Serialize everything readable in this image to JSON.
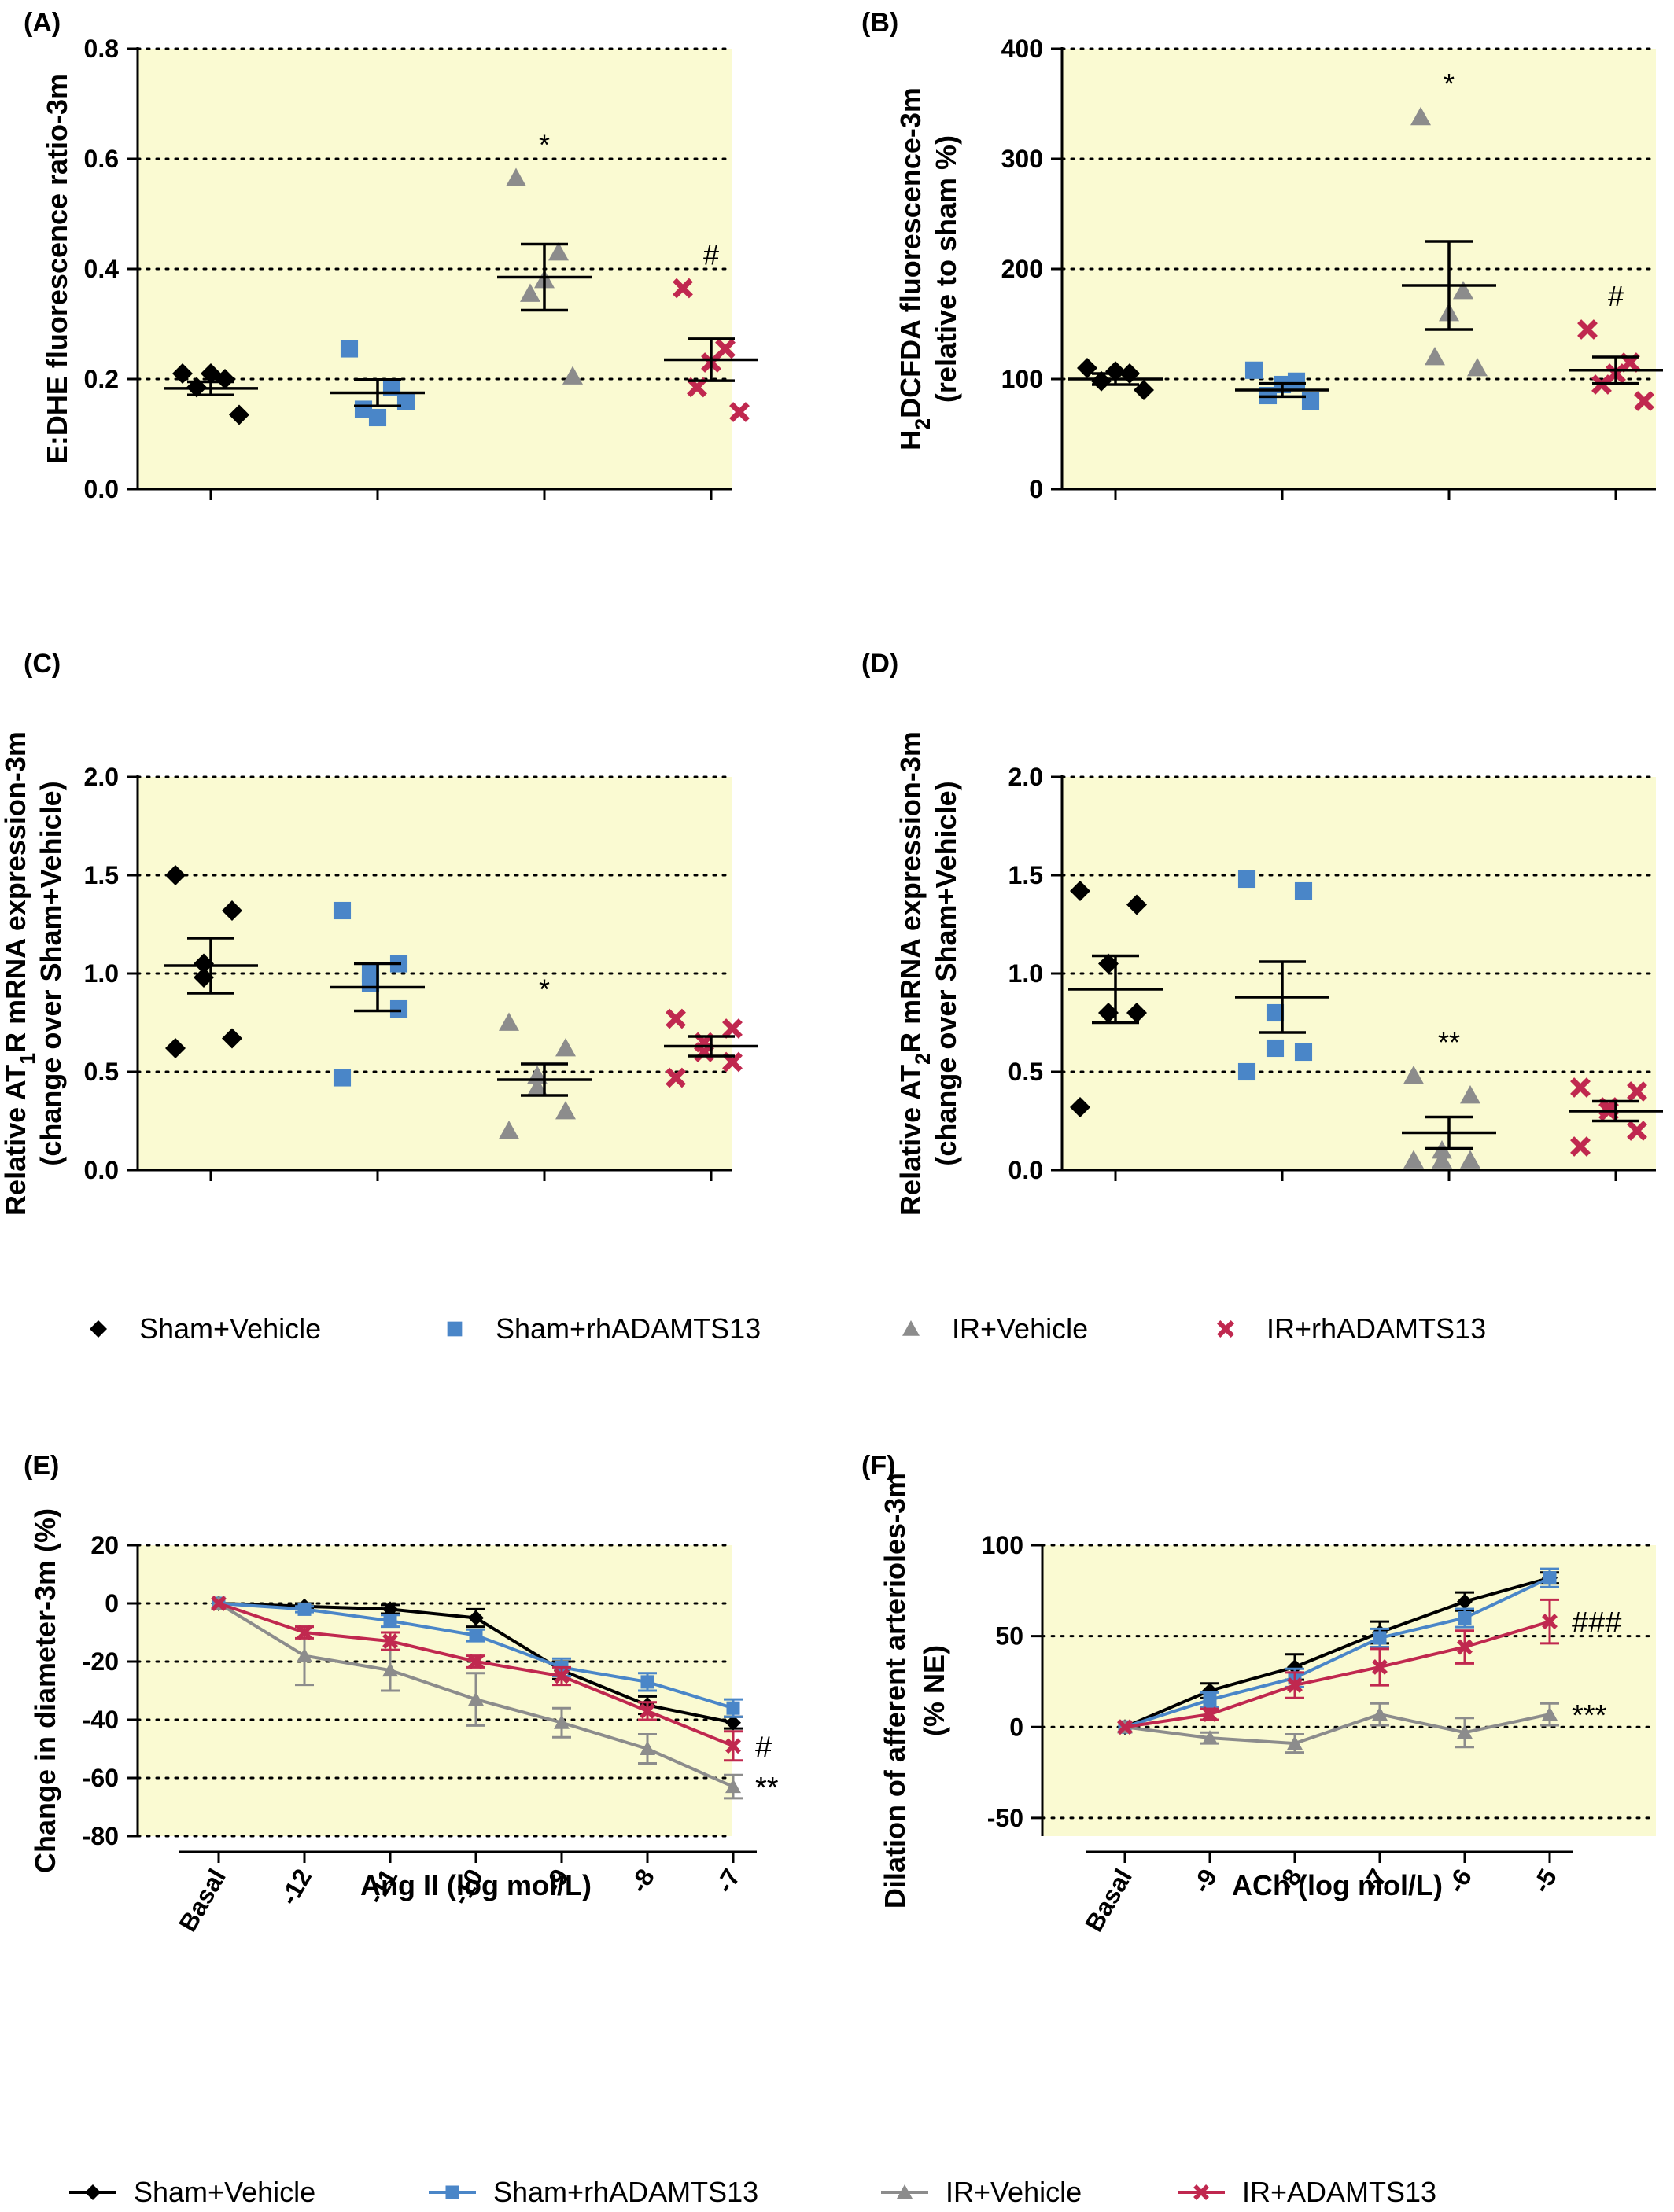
{
  "colors": {
    "panel_bg": "#fafad2",
    "sham_vehicle": "#000000",
    "sham_rh": "#4a86c8",
    "ir_vehicle": "#8c8c8c",
    "ir_rh": "#c0284f"
  },
  "legend_top": {
    "items": [
      {
        "label": "Sham+Vehicle",
        "marker": "diamond",
        "color": "#000000"
      },
      {
        "label": "Sham+rhADAMTS13",
        "marker": "square",
        "color": "#4a86c8"
      },
      {
        "label": "IR+Vehicle",
        "marker": "triangle",
        "color": "#8c8c8c"
      },
      {
        "label": "IR+rhADAMTS13",
        "marker": "cross",
        "color": "#c0284f"
      }
    ]
  },
  "legend_bottom": {
    "items": [
      {
        "label": "Sham+Vehicle",
        "marker": "diamond",
        "color": "#000000"
      },
      {
        "label": "Sham+rhADAMTS13",
        "marker": "square",
        "color": "#4a86c8"
      },
      {
        "label": "IR+Vehicle",
        "marker": "triangle",
        "color": "#8c8c8c"
      },
      {
        "label": "IR+ADAMTS13",
        "marker": "cross",
        "color": "#c0284f"
      }
    ]
  },
  "chart_data": [
    {
      "panel": "(A)",
      "type": "scatter",
      "ylabel_lines": [
        [
          "E:DHE fluorescence ratio-3m"
        ]
      ],
      "ylim": [
        0,
        0.8
      ],
      "yticks": [
        0,
        0.2,
        0.4,
        0.6,
        0.8
      ],
      "yticklabels": [
        "0.0",
        "0.2",
        "0.4",
        "0.6",
        "0.8"
      ],
      "gridlines": [
        0.2,
        0.4,
        0.6,
        0.8
      ],
      "groups": [
        {
          "name": "Sham+Vehicle",
          "points": [
            0.21,
            0.2,
            0.21,
            0.185,
            0.135
          ],
          "mean": 0.183,
          "sem": 0.012,
          "annotation": ""
        },
        {
          "name": "Sham+rhADAMTS13",
          "points": [
            0.255,
            0.185,
            0.13,
            0.145,
            0.16
          ],
          "mean": 0.175,
          "sem": 0.024,
          "annotation": ""
        },
        {
          "name": "IR+Vehicle",
          "points": [
            0.565,
            0.43,
            0.38,
            0.355,
            0.205
          ],
          "mean": 0.385,
          "sem": 0.06,
          "annotation": "*"
        },
        {
          "name": "IR+rhADAMTS13",
          "points": [
            0.365,
            0.255,
            0.23,
            0.185,
            0.14
          ],
          "mean": 0.235,
          "sem": 0.038,
          "annotation": "#"
        }
      ]
    },
    {
      "panel": "(B)",
      "type": "scatter",
      "ylabel_lines": [
        [
          "H",
          {
            "sub": "2"
          },
          "DCFDA fluorescence-3m"
        ],
        [
          "(relative to sham %)"
        ]
      ],
      "ylim": [
        0,
        400
      ],
      "yticks": [
        0,
        100,
        200,
        300,
        400
      ],
      "yticklabels": [
        "0",
        "100",
        "200",
        "300",
        "400"
      ],
      "gridlines": [
        100,
        200,
        300,
        400
      ],
      "groups": [
        {
          "name": "Sham+Vehicle",
          "points": [
            110,
            105,
            107,
            98,
            90
          ],
          "mean": 100,
          "sem": 5,
          "annotation": ""
        },
        {
          "name": "Sham+rhADAMTS13",
          "points": [
            108,
            98,
            95,
            85,
            80
          ],
          "mean": 90,
          "sem": 6,
          "annotation": ""
        },
        {
          "name": "IR+Vehicle",
          "points": [
            338,
            180,
            160,
            120,
            110
          ],
          "mean": 185,
          "sem": 40,
          "annotation": "*"
        },
        {
          "name": "IR+rhADAMTS13",
          "points": [
            145,
            115,
            105,
            95,
            80
          ],
          "mean": 108,
          "sem": 12,
          "annotation": "#"
        }
      ]
    },
    {
      "panel": "(C)",
      "type": "scatter",
      "ylabel_lines": [
        [
          "Relative AT",
          {
            "sub": "1"
          },
          "R mRNA expression-3m"
        ],
        [
          "(change over Sham+Vehicle)"
        ]
      ],
      "ylim": [
        0,
        2.0
      ],
      "yticks": [
        0,
        0.5,
        1.0,
        1.5,
        2.0
      ],
      "yticklabels": [
        "0.0",
        "0.5",
        "1.0",
        "1.5",
        "2.0"
      ],
      "gridlines": [
        0.5,
        1.0,
        1.5,
        2.0
      ],
      "groups": [
        {
          "name": "Sham+Vehicle",
          "points": [
            1.5,
            1.32,
            1.05,
            0.98,
            0.67,
            0.62
          ],
          "mean": 1.04,
          "sem": 0.14,
          "annotation": ""
        },
        {
          "name": "Sham+rhADAMTS13",
          "points": [
            1.32,
            1.05,
            1.0,
            0.95,
            0.82,
            0.47
          ],
          "mean": 0.93,
          "sem": 0.12,
          "annotation": ""
        },
        {
          "name": "IR+Vehicle",
          "points": [
            0.75,
            0.62,
            0.48,
            0.42,
            0.3,
            0.2
          ],
          "mean": 0.46,
          "sem": 0.08,
          "annotation": "*"
        },
        {
          "name": "IR+rhADAMTS13",
          "points": [
            0.77,
            0.72,
            0.65,
            0.6,
            0.55,
            0.47
          ],
          "mean": 0.63,
          "sem": 0.05,
          "annotation": ""
        }
      ]
    },
    {
      "panel": "(D)",
      "type": "scatter",
      "ylabel_lines": [
        [
          "Relative AT",
          {
            "sub": "2"
          },
          "R mRNA expression-3m"
        ],
        [
          "(change over Sham+Vehicle)"
        ]
      ],
      "ylim": [
        0,
        2.0
      ],
      "yticks": [
        0,
        0.5,
        1.0,
        1.5,
        2.0
      ],
      "yticklabels": [
        "0.0",
        "0.5",
        "1.0",
        "1.5",
        "2.0"
      ],
      "gridlines": [
        0.5,
        1.0,
        1.5,
        2.0
      ],
      "groups": [
        {
          "name": "Sham+Vehicle",
          "points": [
            1.42,
            1.35,
            1.05,
            0.8,
            0.8,
            0.32
          ],
          "mean": 0.92,
          "sem": 0.17,
          "annotation": ""
        },
        {
          "name": "Sham+rhADAMTS13",
          "points": [
            1.48,
            1.42,
            0.8,
            0.62,
            0.6,
            0.5
          ],
          "mean": 0.88,
          "sem": 0.18,
          "annotation": ""
        },
        {
          "name": "IR+Vehicle",
          "points": [
            0.48,
            0.38,
            0.1,
            0.05,
            0.05,
            0.05
          ],
          "mean": 0.19,
          "sem": 0.08,
          "annotation": "**"
        },
        {
          "name": "IR+rhADAMTS13",
          "points": [
            0.42,
            0.4,
            0.32,
            0.3,
            0.2,
            0.12
          ],
          "mean": 0.3,
          "sem": 0.05,
          "annotation": ""
        }
      ]
    },
    {
      "panel": "(E)",
      "type": "line",
      "ylabel_lines": [
        [
          "Change in diameter-3m (%)"
        ]
      ],
      "xlabel": "Ang II (log mol/L)",
      "categories": [
        "Basal",
        "-12",
        "-11",
        "-10",
        "-9",
        "-8",
        "-7"
      ],
      "ylim": [
        -80,
        20
      ],
      "yticks": [
        -80,
        -60,
        -40,
        -20,
        0,
        20
      ],
      "yticklabels": [
        "-80",
        "-60",
        "-40",
        "-20",
        "0",
        "20"
      ],
      "gridlines": [
        -80,
        -60,
        -40,
        -20,
        0,
        20
      ],
      "series": [
        {
          "name": "Sham+Vehicle",
          "values": [
            0,
            -1,
            -2,
            -5,
            -23,
            -35,
            -41
          ],
          "errors": [
            0,
            1,
            1.5,
            3,
            3,
            3,
            2
          ]
        },
        {
          "name": "Sham+rhADAMTS13",
          "values": [
            0,
            -2,
            -6,
            -11,
            -22,
            -27,
            -36
          ],
          "errors": [
            0,
            1,
            2,
            2,
            3,
            3,
            3
          ]
        },
        {
          "name": "IR+Vehicle",
          "values": [
            0,
            -18,
            -23,
            -33,
            -41,
            -50,
            -63
          ],
          "errors": [
            0,
            10,
            7,
            9,
            5,
            5,
            4
          ]
        },
        {
          "name": "IR+rhADAMTS13",
          "values": [
            0,
            -10,
            -13,
            -20,
            -25,
            -37,
            -49
          ],
          "errors": [
            0,
            2,
            3,
            2,
            3,
            3,
            5
          ]
        }
      ],
      "annotations": [
        {
          "series": "IR+rhADAMTS13",
          "text": "#"
        },
        {
          "series": "IR+Vehicle",
          "text": "**"
        }
      ]
    },
    {
      "panel": "(F)",
      "type": "line",
      "ylabel_lines": [
        [
          "Dilation of afferent arterioles-3m"
        ],
        [
          "(% NE)"
        ]
      ],
      "xlabel": "ACh (log mol/L)",
      "categories": [
        "Basal",
        "-9",
        "-8",
        "-7",
        "-6",
        "-5"
      ],
      "ylim": [
        -60,
        100
      ],
      "yticks": [
        -50,
        0,
        50,
        100
      ],
      "yticklabels": [
        "-50",
        "0",
        "50",
        "100"
      ],
      "gridlines": [
        -50,
        0,
        50,
        100
      ],
      "series": [
        {
          "name": "Sham+Vehicle",
          "values": [
            0,
            20,
            33,
            52,
            69,
            82
          ],
          "errors": [
            0,
            4,
            7,
            6,
            5,
            3
          ]
        },
        {
          "name": "Sham+rhADAMTS13",
          "values": [
            0,
            15,
            27,
            49,
            60,
            82
          ],
          "errors": [
            0,
            4,
            5,
            5,
            5,
            5
          ]
        },
        {
          "name": "IR+Vehicle",
          "values": [
            0,
            -6,
            -9,
            7,
            -3,
            7
          ],
          "errors": [
            0,
            3,
            5,
            6,
            8,
            6
          ]
        },
        {
          "name": "IR+rhADAMTS13",
          "values": [
            0,
            7,
            23,
            33,
            44,
            58
          ],
          "errors": [
            0,
            3,
            7,
            10,
            9,
            12
          ]
        }
      ],
      "annotations": [
        {
          "series": "IR+rhADAMTS13",
          "text": "###"
        },
        {
          "series": "IR+Vehicle",
          "text": "***"
        }
      ]
    }
  ]
}
